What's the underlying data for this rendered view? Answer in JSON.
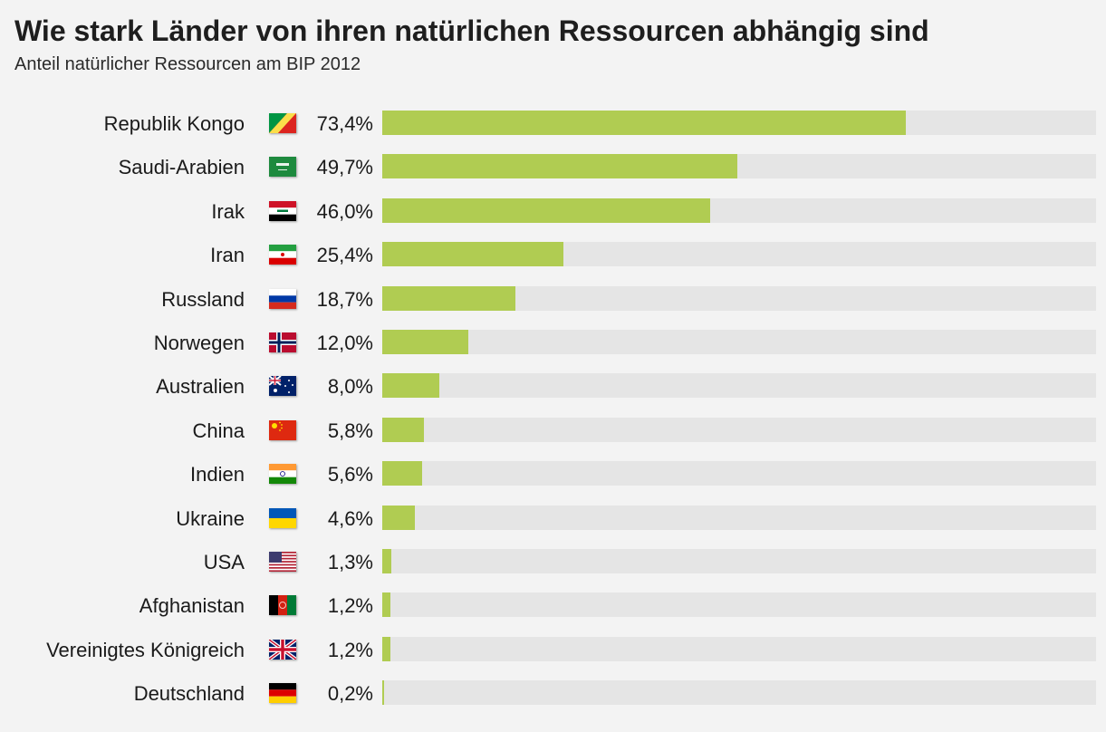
{
  "chart_data": {
    "type": "bar",
    "orientation": "horizontal",
    "title": "Wie stark Länder von ihren natürlichen Ressourcen abhängig sind",
    "subtitle": "Anteil natürlicher Ressourcen am BIP 2012",
    "xlim": [
      0,
      100
    ],
    "unit": "%",
    "colors": {
      "bar": "#b0cc52",
      "track": "#e5e5e5",
      "background": "#f3f3f3"
    },
    "categories": [
      "Republik Kongo",
      "Saudi-Arabien",
      "Irak",
      "Iran",
      "Russland",
      "Norwegen",
      "Australien",
      "China",
      "Indien",
      "Ukraine",
      "USA",
      "Afghanistan",
      "Vereinigtes Königreich",
      "Deutschland"
    ],
    "values": [
      73.4,
      49.7,
      46.0,
      25.4,
      18.7,
      12.0,
      8.0,
      5.8,
      5.6,
      4.6,
      1.3,
      1.2,
      1.2,
      0.2
    ],
    "labels": [
      "73,4%",
      "49,7%",
      "46,0%",
      "25,4%",
      "18,7%",
      "12,0%",
      "8,0%",
      "5,8%",
      "5,6%",
      "4,6%",
      "1,3%",
      "1,2%",
      "1,2%",
      "0,2%"
    ],
    "flags": [
      "congo-flag-icon",
      "saudi-arabia-flag-icon",
      "iraq-flag-icon",
      "iran-flag-icon",
      "russia-flag-icon",
      "norway-flag-icon",
      "australia-flag-icon",
      "china-flag-icon",
      "india-flag-icon",
      "ukraine-flag-icon",
      "usa-flag-icon",
      "afghanistan-flag-icon",
      "uk-flag-icon",
      "germany-flag-icon"
    ]
  }
}
